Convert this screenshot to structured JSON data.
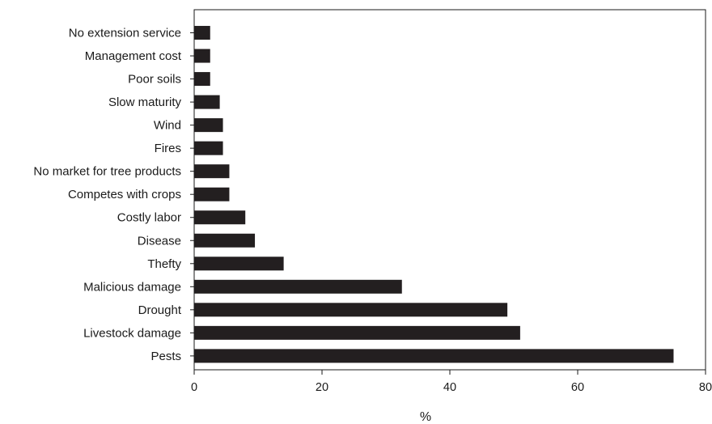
{
  "chart_data": {
    "type": "bar",
    "orientation": "horizontal",
    "title": "",
    "xlabel": "%",
    "ylabel": "",
    "xlim": [
      0,
      80
    ],
    "xticks": [
      0,
      20,
      40,
      60,
      80
    ],
    "grid": false,
    "legend": "none",
    "bar_color": "#231f20",
    "categories": [
      "No extension service",
      "Management cost",
      "Poor soils",
      "Slow maturity",
      "Wind",
      "Fires",
      "No market for tree products",
      "Competes with crops",
      "Costly labor",
      "Disease",
      "Thefty",
      "Malicious damage",
      "Drought",
      "Livestock damage",
      "Pests"
    ],
    "values": [
      2.5,
      2.5,
      2.5,
      4,
      4.5,
      4.5,
      5.5,
      5.5,
      8,
      9.5,
      14,
      32.5,
      49,
      51,
      75
    ]
  }
}
